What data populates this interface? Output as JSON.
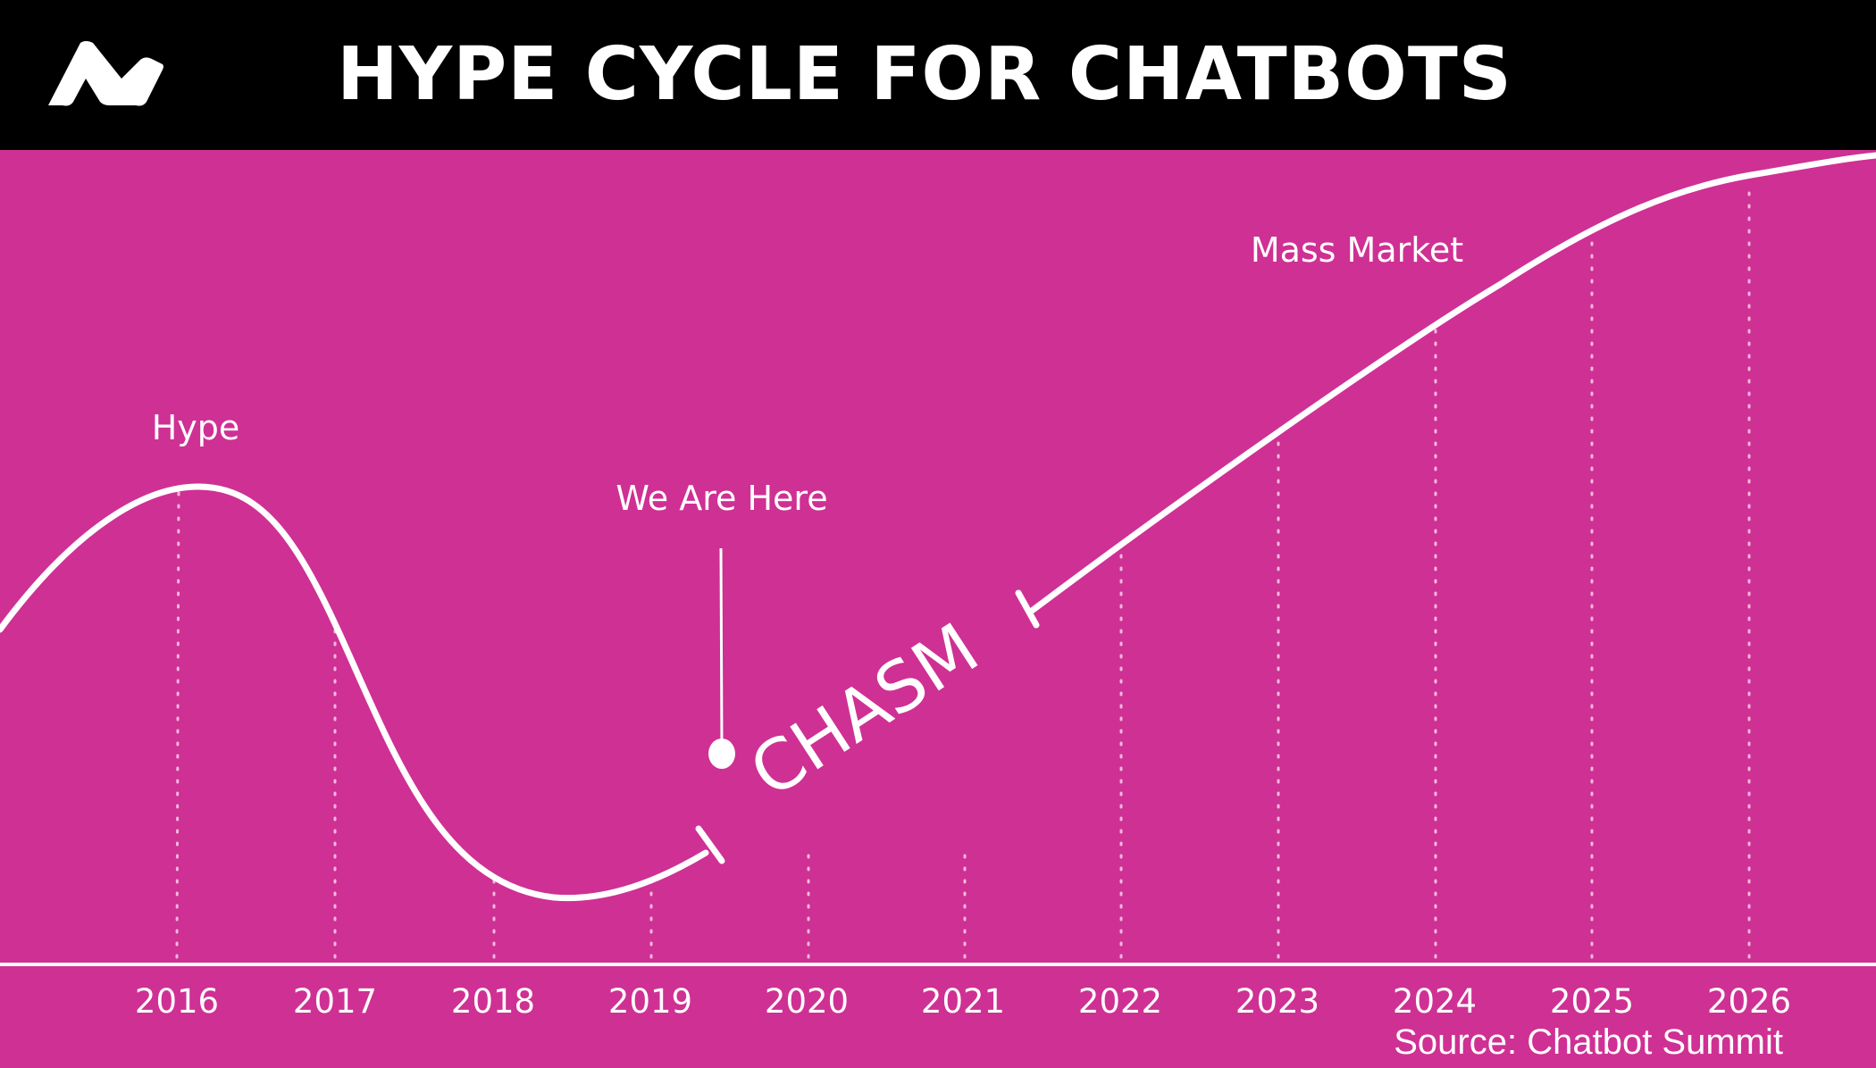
{
  "header": {
    "title": "HYPE CYCLE FOR CHATBOTS",
    "logo_icon": "brand-logo-icon"
  },
  "colors": {
    "background": "#cf3094",
    "header": "#000000",
    "line": "#ffffff"
  },
  "chart_data": {
    "type": "line",
    "title": "HYPE CYCLE FOR CHATBOTS",
    "x_ticks": [
      "2016",
      "2017",
      "2018",
      "2019",
      "2020",
      "2021",
      "2022",
      "2023",
      "2024",
      "2025",
      "2026"
    ],
    "annotations": {
      "hype": "Hype",
      "we_are_here": "We Are Here",
      "chasm": "CHASM",
      "mass_market": "Mass Market"
    },
    "grid": "dotted vertical lines at each year"
  },
  "source": "Source: Chatbot Summit"
}
